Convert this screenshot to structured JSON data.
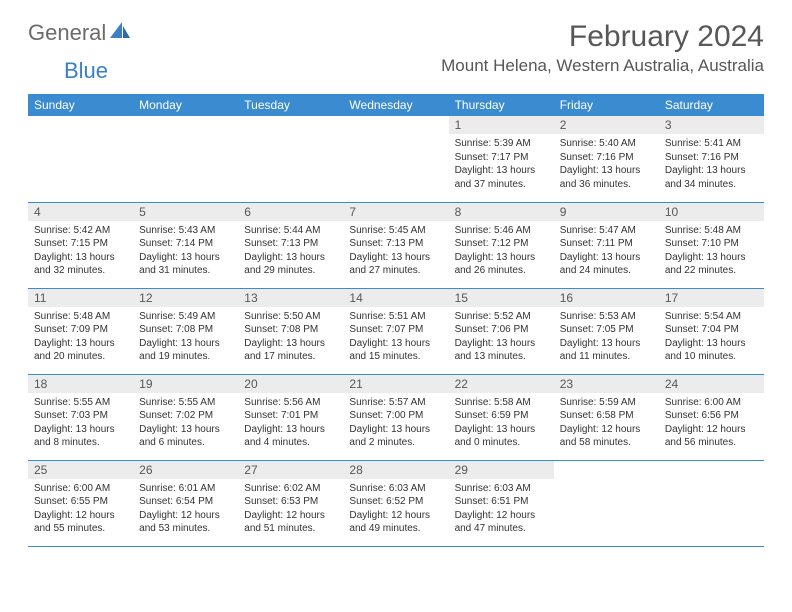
{
  "brand": {
    "text1": "General",
    "text2": "Blue"
  },
  "title": "February 2024",
  "location": "Mount Helena, Western Australia, Australia",
  "colors": {
    "header_bg": "#3b8bd0",
    "header_text": "#ffffff",
    "daynum_bg": "#ececec",
    "border": "#3b8bd0",
    "title_color": "#575757",
    "logo_gray": "#6b6b6b",
    "logo_blue": "#3b7fc4"
  },
  "weekdays": [
    "Sunday",
    "Monday",
    "Tuesday",
    "Wednesday",
    "Thursday",
    "Friday",
    "Saturday"
  ],
  "weeks": [
    [
      {
        "n": "",
        "sr": "",
        "ss": "",
        "dl": ""
      },
      {
        "n": "",
        "sr": "",
        "ss": "",
        "dl": ""
      },
      {
        "n": "",
        "sr": "",
        "ss": "",
        "dl": ""
      },
      {
        "n": "",
        "sr": "",
        "ss": "",
        "dl": ""
      },
      {
        "n": "1",
        "sr": "Sunrise: 5:39 AM",
        "ss": "Sunset: 7:17 PM",
        "dl": "Daylight: 13 hours and 37 minutes."
      },
      {
        "n": "2",
        "sr": "Sunrise: 5:40 AM",
        "ss": "Sunset: 7:16 PM",
        "dl": "Daylight: 13 hours and 36 minutes."
      },
      {
        "n": "3",
        "sr": "Sunrise: 5:41 AM",
        "ss": "Sunset: 7:16 PM",
        "dl": "Daylight: 13 hours and 34 minutes."
      }
    ],
    [
      {
        "n": "4",
        "sr": "Sunrise: 5:42 AM",
        "ss": "Sunset: 7:15 PM",
        "dl": "Daylight: 13 hours and 32 minutes."
      },
      {
        "n": "5",
        "sr": "Sunrise: 5:43 AM",
        "ss": "Sunset: 7:14 PM",
        "dl": "Daylight: 13 hours and 31 minutes."
      },
      {
        "n": "6",
        "sr": "Sunrise: 5:44 AM",
        "ss": "Sunset: 7:13 PM",
        "dl": "Daylight: 13 hours and 29 minutes."
      },
      {
        "n": "7",
        "sr": "Sunrise: 5:45 AM",
        "ss": "Sunset: 7:13 PM",
        "dl": "Daylight: 13 hours and 27 minutes."
      },
      {
        "n": "8",
        "sr": "Sunrise: 5:46 AM",
        "ss": "Sunset: 7:12 PM",
        "dl": "Daylight: 13 hours and 26 minutes."
      },
      {
        "n": "9",
        "sr": "Sunrise: 5:47 AM",
        "ss": "Sunset: 7:11 PM",
        "dl": "Daylight: 13 hours and 24 minutes."
      },
      {
        "n": "10",
        "sr": "Sunrise: 5:48 AM",
        "ss": "Sunset: 7:10 PM",
        "dl": "Daylight: 13 hours and 22 minutes."
      }
    ],
    [
      {
        "n": "11",
        "sr": "Sunrise: 5:48 AM",
        "ss": "Sunset: 7:09 PM",
        "dl": "Daylight: 13 hours and 20 minutes."
      },
      {
        "n": "12",
        "sr": "Sunrise: 5:49 AM",
        "ss": "Sunset: 7:08 PM",
        "dl": "Daylight: 13 hours and 19 minutes."
      },
      {
        "n": "13",
        "sr": "Sunrise: 5:50 AM",
        "ss": "Sunset: 7:08 PM",
        "dl": "Daylight: 13 hours and 17 minutes."
      },
      {
        "n": "14",
        "sr": "Sunrise: 5:51 AM",
        "ss": "Sunset: 7:07 PM",
        "dl": "Daylight: 13 hours and 15 minutes."
      },
      {
        "n": "15",
        "sr": "Sunrise: 5:52 AM",
        "ss": "Sunset: 7:06 PM",
        "dl": "Daylight: 13 hours and 13 minutes."
      },
      {
        "n": "16",
        "sr": "Sunrise: 5:53 AM",
        "ss": "Sunset: 7:05 PM",
        "dl": "Daylight: 13 hours and 11 minutes."
      },
      {
        "n": "17",
        "sr": "Sunrise: 5:54 AM",
        "ss": "Sunset: 7:04 PM",
        "dl": "Daylight: 13 hours and 10 minutes."
      }
    ],
    [
      {
        "n": "18",
        "sr": "Sunrise: 5:55 AM",
        "ss": "Sunset: 7:03 PM",
        "dl": "Daylight: 13 hours and 8 minutes."
      },
      {
        "n": "19",
        "sr": "Sunrise: 5:55 AM",
        "ss": "Sunset: 7:02 PM",
        "dl": "Daylight: 13 hours and 6 minutes."
      },
      {
        "n": "20",
        "sr": "Sunrise: 5:56 AM",
        "ss": "Sunset: 7:01 PM",
        "dl": "Daylight: 13 hours and 4 minutes."
      },
      {
        "n": "21",
        "sr": "Sunrise: 5:57 AM",
        "ss": "Sunset: 7:00 PM",
        "dl": "Daylight: 13 hours and 2 minutes."
      },
      {
        "n": "22",
        "sr": "Sunrise: 5:58 AM",
        "ss": "Sunset: 6:59 PM",
        "dl": "Daylight: 13 hours and 0 minutes."
      },
      {
        "n": "23",
        "sr": "Sunrise: 5:59 AM",
        "ss": "Sunset: 6:58 PM",
        "dl": "Daylight: 12 hours and 58 minutes."
      },
      {
        "n": "24",
        "sr": "Sunrise: 6:00 AM",
        "ss": "Sunset: 6:56 PM",
        "dl": "Daylight: 12 hours and 56 minutes."
      }
    ],
    [
      {
        "n": "25",
        "sr": "Sunrise: 6:00 AM",
        "ss": "Sunset: 6:55 PM",
        "dl": "Daylight: 12 hours and 55 minutes."
      },
      {
        "n": "26",
        "sr": "Sunrise: 6:01 AM",
        "ss": "Sunset: 6:54 PM",
        "dl": "Daylight: 12 hours and 53 minutes."
      },
      {
        "n": "27",
        "sr": "Sunrise: 6:02 AM",
        "ss": "Sunset: 6:53 PM",
        "dl": "Daylight: 12 hours and 51 minutes."
      },
      {
        "n": "28",
        "sr": "Sunrise: 6:03 AM",
        "ss": "Sunset: 6:52 PM",
        "dl": "Daylight: 12 hours and 49 minutes."
      },
      {
        "n": "29",
        "sr": "Sunrise: 6:03 AM",
        "ss": "Sunset: 6:51 PM",
        "dl": "Daylight: 12 hours and 47 minutes."
      },
      {
        "n": "",
        "sr": "",
        "ss": "",
        "dl": ""
      },
      {
        "n": "",
        "sr": "",
        "ss": "",
        "dl": ""
      }
    ]
  ]
}
